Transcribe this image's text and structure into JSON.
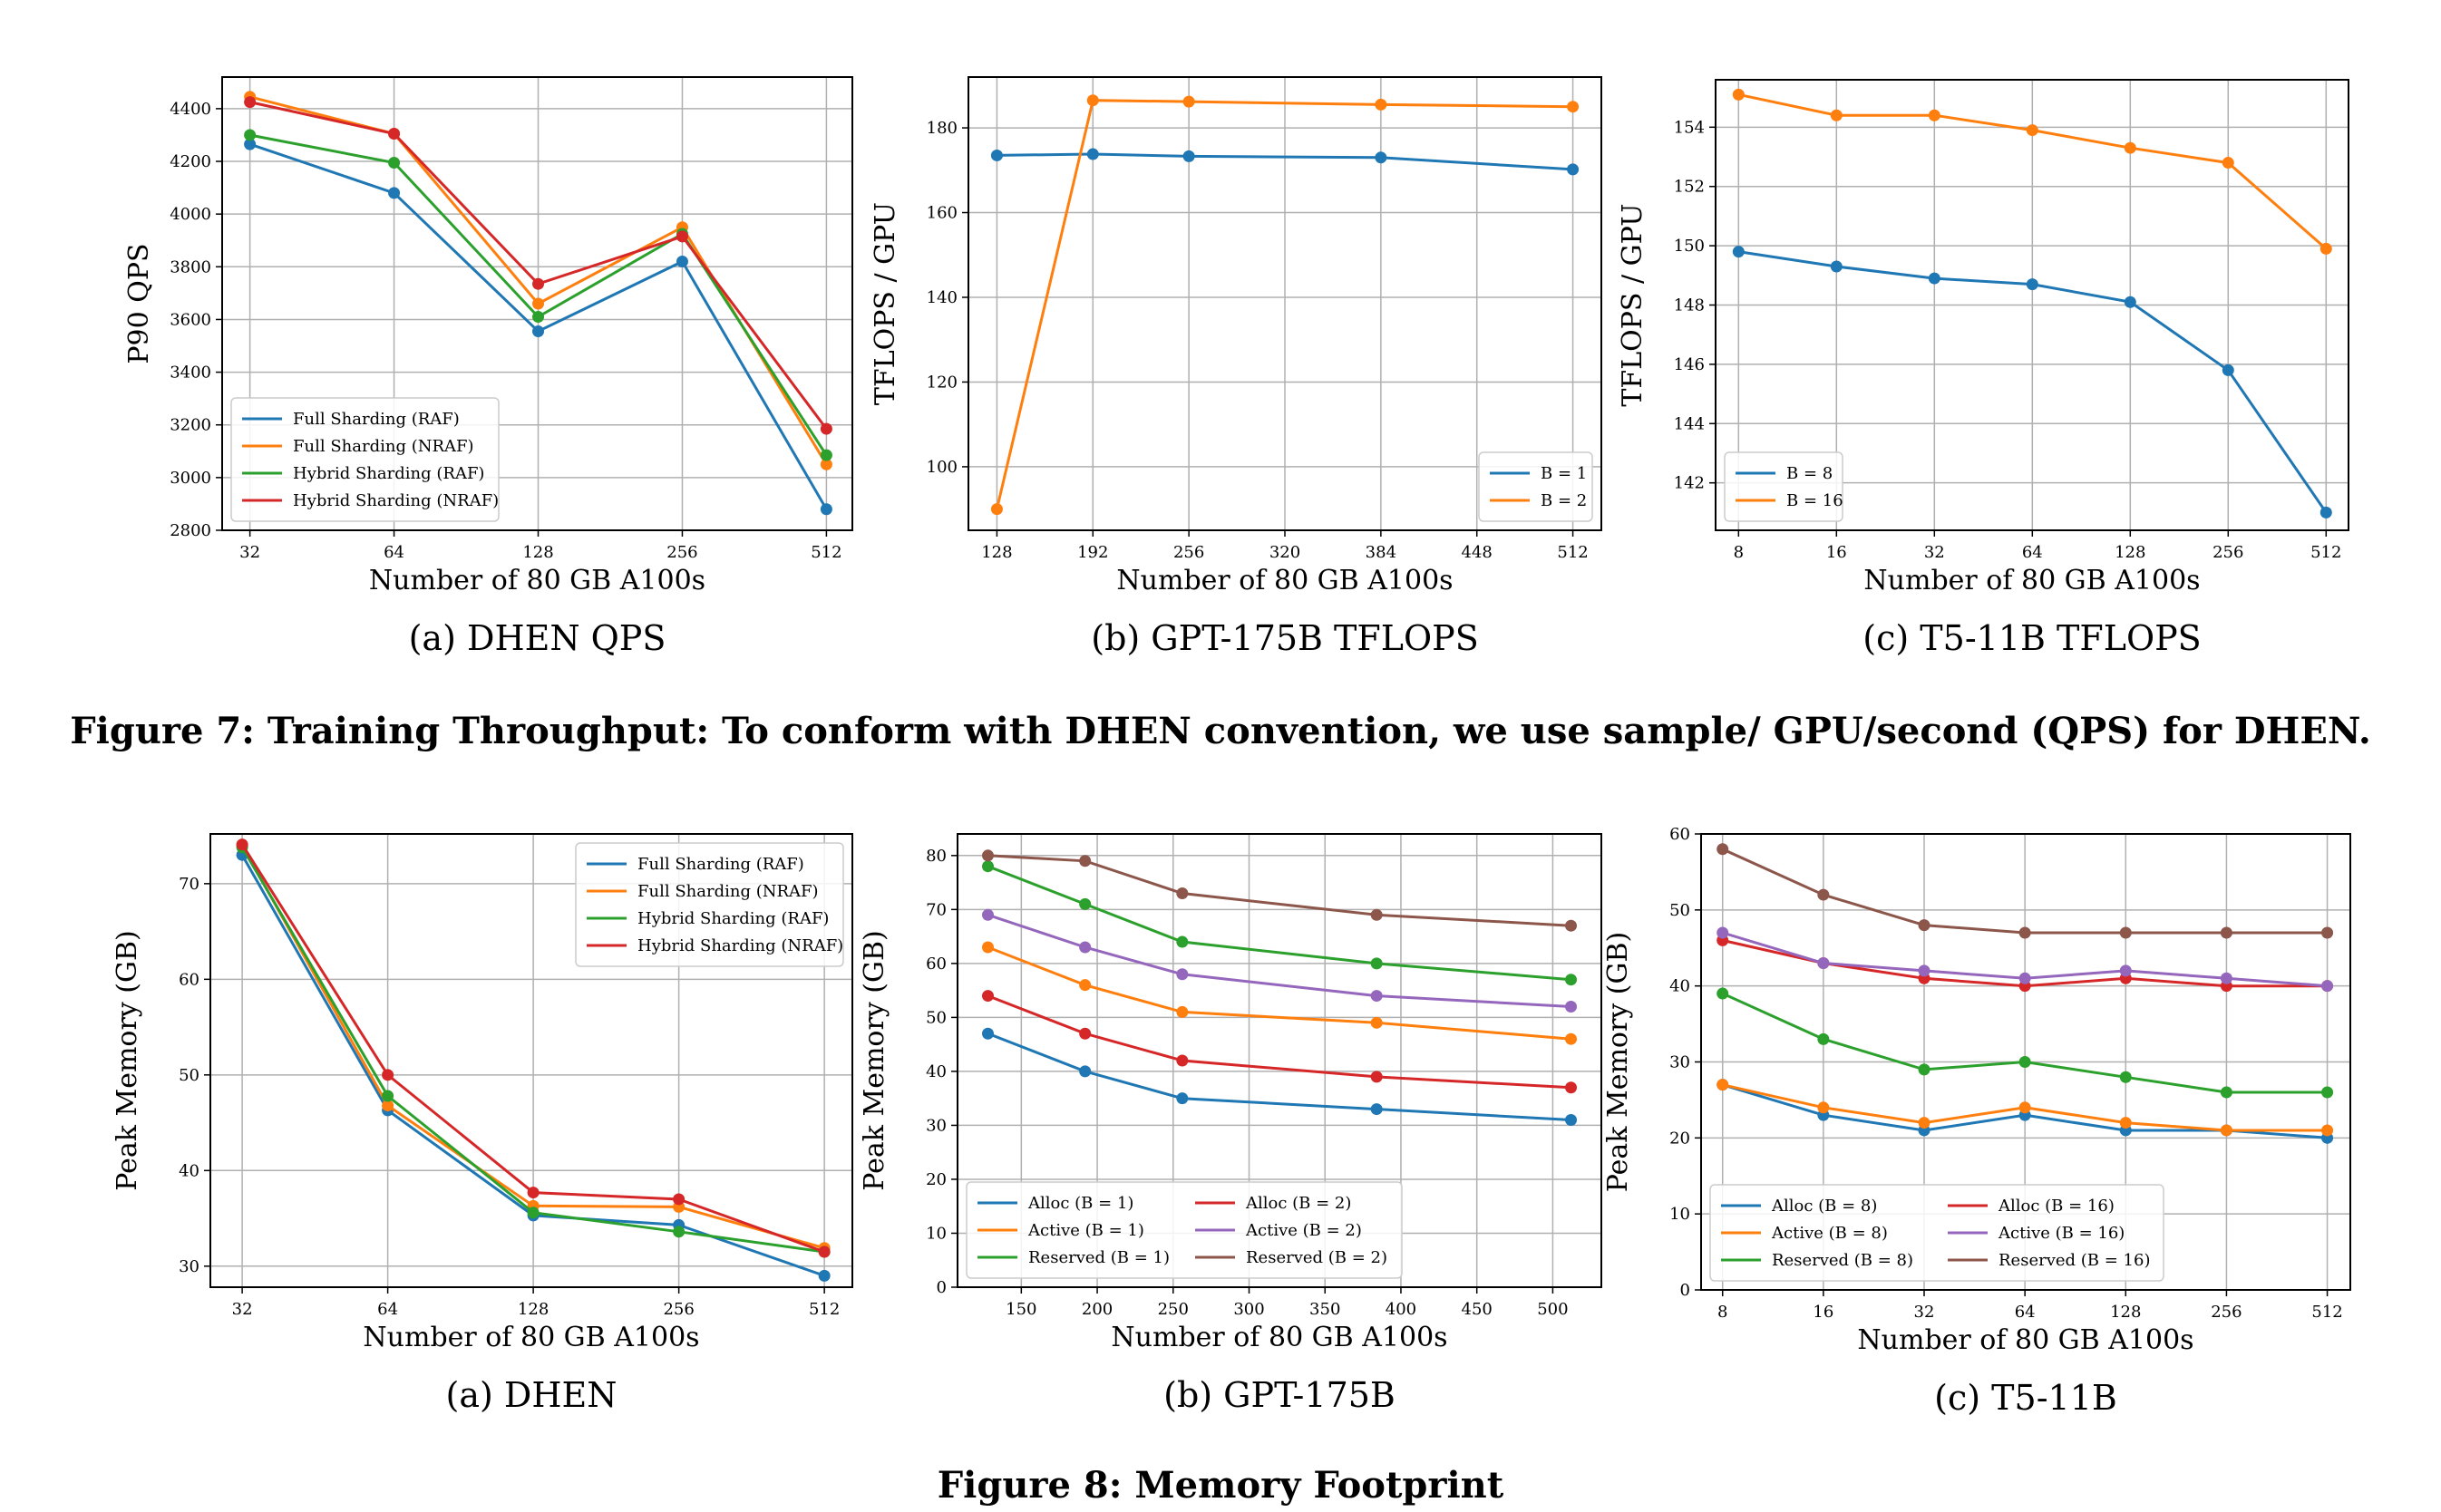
{
  "figure7": {
    "caption": "Figure 7: Training Throughput: To conform with DHEN convention, we use sample/ GPU/second (QPS) for DHEN."
  },
  "figure8": {
    "caption": "Figure 8: Memory Footprint"
  },
  "chart_data": [
    {
      "id": "f7a",
      "type": "line",
      "subcaption": "(a) DHEN QPS",
      "xlabel": "Number of 80 GB A100s",
      "ylabel": "P90 QPS",
      "x_scale": "log2",
      "x": [
        32,
        64,
        128,
        256,
        512
      ],
      "xticks": [
        32,
        64,
        128,
        256,
        512
      ],
      "xlim": [
        28,
        580
      ],
      "ylim": [
        2800,
        4520
      ],
      "yticks": [
        2800,
        3000,
        3200,
        3400,
        3600,
        3800,
        4000,
        4200,
        4400
      ],
      "grid": true,
      "legend": "bottom-left",
      "series": [
        {
          "name": "Full Sharding (RAF)",
          "color": "#1f77b4",
          "values": [
            4265,
            4080,
            3555,
            3820,
            2880
          ]
        },
        {
          "name": "Full Sharding (NRAF)",
          "color": "#ff7f0e",
          "values": [
            4445,
            4305,
            3660,
            3950,
            3050
          ]
        },
        {
          "name": "Hybrid Sharding (RAF)",
          "color": "#2ca02c",
          "values": [
            4300,
            4195,
            3610,
            3925,
            3085
          ]
        },
        {
          "name": "Hybrid Sharding (NRAF)",
          "color": "#d62728",
          "values": [
            4425,
            4305,
            3735,
            3915,
            3185
          ]
        }
      ]
    },
    {
      "id": "f7b",
      "type": "line",
      "subcaption": "(b) GPT-175B TFLOPS",
      "xlabel": "Number of 80 GB A100s",
      "ylabel": "TFLOPS / GPU",
      "x_scale": "linear",
      "x": [
        128,
        192,
        256,
        384,
        512
      ],
      "xticks": [
        128,
        192,
        256,
        320,
        384,
        448,
        512
      ],
      "xlim": [
        109,
        531
      ],
      "ylim": [
        85,
        192
      ],
      "yticks": [
        100,
        120,
        140,
        160,
        180
      ],
      "grid": true,
      "legend": "bottom-right",
      "series": [
        {
          "name": "B = 1",
          "color": "#1f77b4",
          "values": [
            173.5,
            173.8,
            173.3,
            173,
            170.2
          ]
        },
        {
          "name": "B = 2",
          "color": "#ff7f0e",
          "values": [
            90,
            186.5,
            186.2,
            185.5,
            185
          ]
        }
      ]
    },
    {
      "id": "f7c",
      "type": "line",
      "subcaption": "(c) T5-11B TFLOPS",
      "xlabel": "Number of 80 GB A100s",
      "ylabel": "TFLOPS / GPU",
      "x_scale": "log2",
      "x": [
        8,
        16,
        32,
        64,
        128,
        256,
        512
      ],
      "xticks": [
        8,
        16,
        32,
        64,
        128,
        256,
        512
      ],
      "xlim": [
        6.8,
        600
      ],
      "ylim": [
        140.4,
        155.6
      ],
      "yticks": [
        142,
        144,
        146,
        148,
        150,
        152,
        154
      ],
      "grid": true,
      "legend": "bottom-left",
      "series": [
        {
          "name": "B = 8",
          "color": "#1f77b4",
          "values": [
            149.8,
            149.3,
            148.9,
            148.7,
            148.1,
            145.8,
            141
          ]
        },
        {
          "name": "B = 16",
          "color": "#ff7f0e",
          "values": [
            155.1,
            154.4,
            154.4,
            153.9,
            153.3,
            152.8,
            149.9
          ]
        }
      ]
    },
    {
      "id": "f8a",
      "type": "line",
      "subcaption": "(a) DHEN",
      "xlabel": "Number of 80 GB A100s",
      "ylabel": "Peak Memory (GB)",
      "x_scale": "log2",
      "x": [
        32,
        64,
        128,
        256,
        512
      ],
      "xticks": [
        32,
        64,
        128,
        256,
        512
      ],
      "xlim": [
        27.5,
        585
      ],
      "ylim": [
        27.8,
        75.2
      ],
      "yticks": [
        30,
        40,
        50,
        60,
        70
      ],
      "grid": true,
      "legend": "top-right",
      "series": [
        {
          "name": "Full Sharding (RAF)",
          "color": "#1f77b4",
          "values": [
            73,
            46.3,
            35.3,
            34.3,
            29
          ]
        },
        {
          "name": "Full Sharding (NRAF)",
          "color": "#ff7f0e",
          "values": [
            74,
            46.8,
            36.3,
            36.2,
            31.9
          ]
        },
        {
          "name": "Hybrid Sharding (RAF)",
          "color": "#2ca02c",
          "values": [
            73.8,
            47.8,
            35.6,
            33.6,
            31.5
          ]
        },
        {
          "name": "Hybrid Sharding (NRAF)",
          "color": "#d62728",
          "values": [
            74.1,
            50,
            37.7,
            37,
            31.5
          ]
        }
      ]
    },
    {
      "id": "f8b",
      "type": "line",
      "subcaption": "(b) GPT-175B",
      "xlabel": "Number of 80 GB A100s",
      "ylabel": "Peak Memory (GB)",
      "x_scale": "linear",
      "x": [
        128,
        192,
        256,
        384,
        512
      ],
      "xticks": [
        150,
        200,
        250,
        300,
        350,
        400,
        450,
        500
      ],
      "xlim": [
        108,
        532
      ],
      "ylim": [
        0,
        84
      ],
      "yticks": [
        0,
        10,
        20,
        30,
        40,
        50,
        60,
        70,
        80
      ],
      "grid": true,
      "legend": "bottom-left",
      "legend_columns": 2,
      "series": [
        {
          "name": "Alloc (B = 1)",
          "color": "#1f77b4",
          "values": [
            47,
            40,
            35,
            33,
            31
          ]
        },
        {
          "name": "Active (B = 1)",
          "color": "#ff7f0e",
          "values": [
            63,
            56,
            51,
            49,
            46
          ]
        },
        {
          "name": "Reserved (B = 1)",
          "color": "#2ca02c",
          "values": [
            78,
            71,
            64,
            60,
            57
          ]
        },
        {
          "name": "Alloc (B = 2)",
          "color": "#d62728",
          "values": [
            54,
            47,
            42,
            39,
            37
          ]
        },
        {
          "name": "Active (B = 2)",
          "color": "#9467bd",
          "values": [
            69,
            63,
            58,
            54,
            52
          ]
        },
        {
          "name": "Reserved (B = 2)",
          "color": "#8c564b",
          "values": [
            80,
            79,
            73,
            69,
            67
          ]
        }
      ]
    },
    {
      "id": "f8c",
      "type": "line",
      "subcaption": "(c) T5-11B",
      "xlabel": "Number of 80 GB A100s",
      "ylabel": "Peak Memory (GB)",
      "x_scale": "log2",
      "x": [
        8,
        16,
        32,
        64,
        128,
        256,
        512
      ],
      "xticks": [
        8,
        16,
        32,
        64,
        128,
        256,
        512
      ],
      "xlim": [
        6.9,
        600
      ],
      "ylim": [
        0,
        60
      ],
      "yticks": [
        0,
        10,
        20,
        30,
        40,
        50,
        60
      ],
      "grid": true,
      "legend": "bottom-left",
      "legend_columns": 2,
      "series": [
        {
          "name": "Alloc (B = 8)",
          "color": "#1f77b4",
          "values": [
            27,
            23,
            21,
            23,
            21,
            21,
            20
          ]
        },
        {
          "name": "Active (B = 8)",
          "color": "#ff7f0e",
          "values": [
            27,
            24,
            22,
            24,
            22,
            21,
            21
          ]
        },
        {
          "name": "Reserved (B = 8)",
          "color": "#2ca02c",
          "values": [
            39,
            33,
            29,
            30,
            28,
            26,
            26
          ]
        },
        {
          "name": "Alloc (B = 16)",
          "color": "#d62728",
          "values": [
            46,
            43,
            41,
            40,
            41,
            40,
            40
          ]
        },
        {
          "name": "Active (B = 16)",
          "color": "#9467bd",
          "values": [
            47,
            43,
            42,
            41,
            42,
            41,
            40
          ]
        },
        {
          "name": "Reserved (B = 16)",
          "color": "#8c564b",
          "values": [
            58,
            52,
            48,
            47,
            47,
            47,
            47
          ]
        }
      ]
    }
  ]
}
